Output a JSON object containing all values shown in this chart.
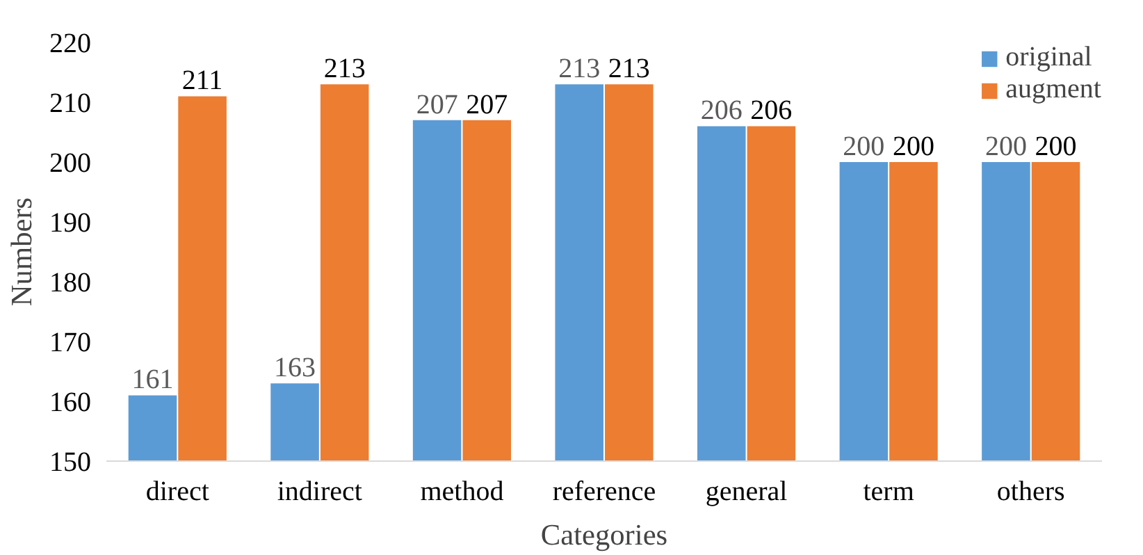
{
  "chart_data": {
    "type": "bar",
    "xlabel": "Categories",
    "ylabel": "Numbers",
    "categories": [
      "direct",
      "indirect",
      "method",
      "reference",
      "general",
      "term",
      "others"
    ],
    "series": [
      {
        "name": "original",
        "color": "#5b9bd5",
        "values": [
          161,
          163,
          207,
          213,
          206,
          200,
          200
        ]
      },
      {
        "name": "augment",
        "color": "#ed7d31",
        "values": [
          211,
          213,
          207,
          213,
          206,
          200,
          200
        ]
      }
    ],
    "ylim": [
      150,
      220
    ],
    "yticks": [
      150,
      160,
      170,
      180,
      190,
      200,
      210,
      220
    ],
    "data_labels": true,
    "grid": false,
    "legend": "top right"
  }
}
